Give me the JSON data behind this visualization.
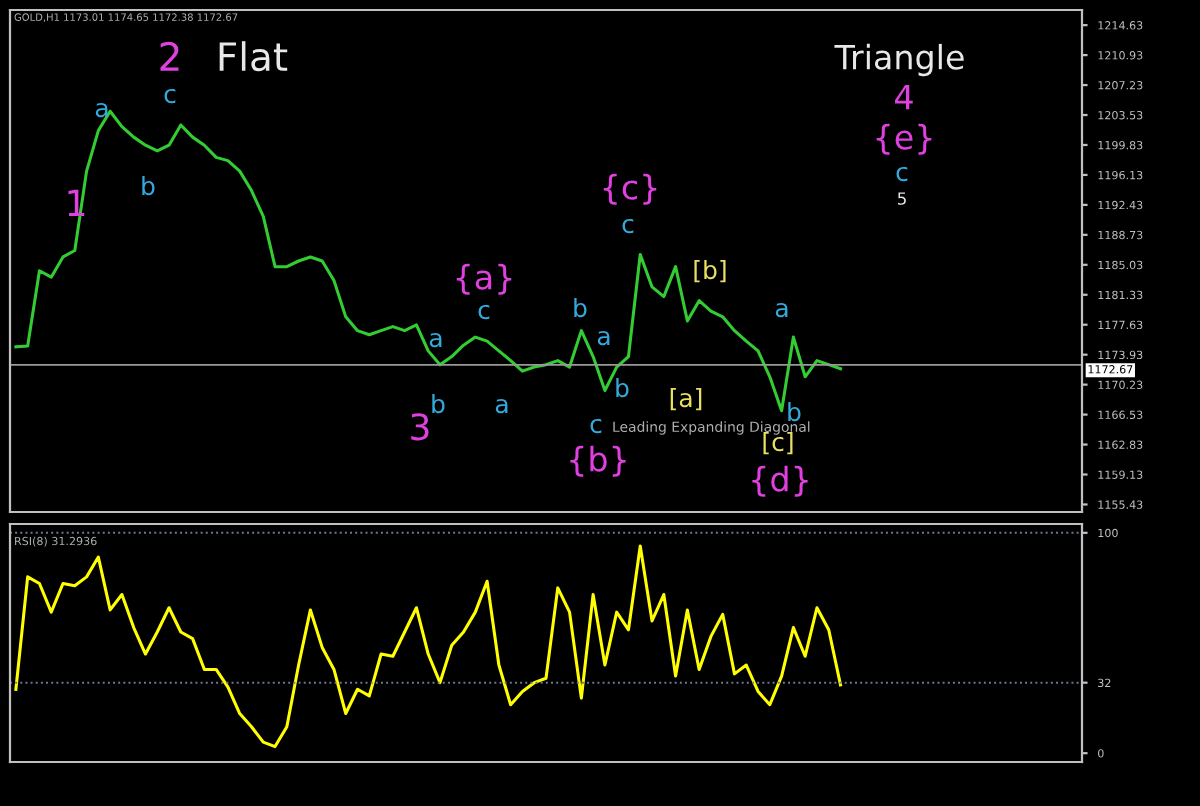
{
  "chart_data": [
    {
      "type": "line",
      "categories": [
        null,
        null,
        null,
        null,
        null,
        null,
        null,
        null,
        null,
        null,
        null,
        null,
        null,
        null,
        null,
        null,
        null,
        null,
        null,
        null,
        null,
        null,
        null,
        null,
        null,
        null,
        null,
        null,
        null,
        null,
        null,
        null,
        null,
        null,
        null,
        null,
        null,
        null,
        null,
        null,
        null,
        null,
        null,
        null,
        null,
        null,
        null,
        null,
        null,
        null,
        null,
        null,
        null,
        null,
        null,
        null,
        null,
        null,
        null,
        null,
        null,
        null,
        null,
        null,
        null,
        null,
        null,
        null,
        null,
        null,
        null,
        null,
        null,
        null,
        null,
        null,
        null,
        null,
        null,
        null,
        null,
        null,
        null,
        null,
        null,
        null,
        null,
        null,
        null,
        null,
        null
      ],
      "series": [
        {
          "color": "#33cc33",
          "values": [
            1174.9,
            1175.0,
            1184.3,
            1183.5,
            1186.0,
            1186.8,
            1196.6,
            1201.6,
            1204.0,
            1202.1,
            1200.8,
            1199.8,
            1199.1,
            1199.8,
            1202.3,
            1200.8,
            1199.8,
            1198.3,
            1197.9,
            1196.6,
            1194.2,
            1191.0,
            1184.8,
            1184.8,
            1185.5,
            1186.0,
            1185.5,
            1183.1,
            1178.6,
            1176.9,
            1176.4,
            1176.9,
            1177.4,
            1176.9,
            1177.6,
            1174.4,
            1172.7,
            1173.7,
            1175.1,
            1176.1,
            1175.6,
            1174.4,
            1173.2,
            1171.9,
            1172.4,
            1172.7,
            1173.2,
            1172.4,
            1176.9,
            1173.7,
            1169.5,
            1172.4,
            1173.7,
            1186.3,
            1182.3,
            1181.1,
            1184.8,
            1178.1,
            1180.6,
            1179.3,
            1178.6,
            1176.9,
            1175.6,
            1174.4,
            1171.2,
            1167.0,
            1176.1,
            1171.2,
            1173.2,
            1172.7,
            1172.2,
            null,
            null,
            null,
            null,
            null,
            null,
            null,
            null,
            null,
            null,
            null,
            null,
            null,
            null,
            null,
            null,
            null,
            null,
            null,
            null
          ]
        }
      ],
      "ylim": [
        1154.5,
        1216.5
      ],
      "yticks": [
        1155.43,
        1159.13,
        1162.83,
        1166.53,
        1170.23,
        1173.93,
        1177.63,
        1181.33,
        1185.03,
        1188.73,
        1192.43,
        1196.13,
        1199.83,
        1203.53,
        1207.23,
        1210.93,
        1214.63
      ],
      "tick_labels": "y",
      "grid": false,
      "legend": false,
      "ref_lines": [
        {
          "axis": "y",
          "value": 1172.67,
          "label": "1172.67",
          "color": "#9a9a9a"
        }
      ],
      "annotations": [
        "2",
        "Flat",
        "a",
        "c",
        "1",
        "b",
        "{a}",
        "c",
        "a",
        "3",
        "b",
        "a",
        "b",
        "c",
        "{b}",
        "a",
        "b",
        "c",
        "{c}",
        "[b]",
        "[a]",
        "Leading Expanding Diagonal",
        "a",
        "b",
        "[c]",
        "{d}",
        "Triangle",
        "4",
        "{e}",
        "c",
        "5",
        "GOLD,H1 1173.01 1174.65 1172.38 1172.67"
      ]
    },
    {
      "type": "line",
      "categories": [
        null,
        null,
        null,
        null,
        null,
        null,
        null,
        null,
        null,
        null,
        null,
        null,
        null,
        null,
        null,
        null,
        null,
        null,
        null,
        null,
        null,
        null,
        null,
        null,
        null,
        null,
        null,
        null,
        null,
        null,
        null,
        null,
        null,
        null,
        null,
        null,
        null,
        null,
        null,
        null,
        null,
        null,
        null,
        null,
        null,
        null,
        null,
        null,
        null,
        null,
        null,
        null,
        null,
        null,
        null,
        null,
        null,
        null,
        null,
        null,
        null,
        null,
        null,
        null,
        null,
        null,
        null,
        null,
        null,
        null,
        null,
        null,
        null,
        null,
        null,
        null,
        null,
        null,
        null,
        null,
        null,
        null,
        null,
        null,
        null,
        null,
        null,
        null,
        null,
        null,
        null
      ],
      "series": [
        {
          "color": "#ffff00",
          "values": [
            29,
            80,
            77,
            64,
            77,
            76,
            80,
            89,
            65,
            72,
            57,
            45,
            55,
            66,
            55,
            52,
            38,
            38,
            30,
            18,
            12,
            5,
            3,
            12,
            40,
            65,
            48,
            38,
            18,
            29,
            26,
            45,
            44,
            55,
            66,
            45,
            32,
            49,
            55,
            64,
            78,
            40,
            22,
            28,
            32,
            34,
            75,
            64,
            25,
            72,
            40,
            64,
            56,
            94,
            60,
            72,
            35,
            65,
            38,
            53,
            63,
            36,
            40,
            28,
            22,
            35,
            57,
            44,
            66,
            56,
            31,
            null,
            null,
            null,
            null,
            null,
            null,
            null,
            null,
            null,
            null,
            null,
            null,
            null,
            null,
            null,
            null,
            null,
            null,
            null,
            null
          ]
        }
      ],
      "ylim": [
        -4,
        104
      ],
      "yticks": [
        0,
        32,
        100
      ],
      "tick_labels": "y",
      "grid": false,
      "legend": false,
      "ref_lines": [
        {
          "axis": "y",
          "value": 100,
          "color": "#6a7a9a",
          "line_style": "dotted"
        },
        {
          "axis": "y",
          "value": 32,
          "color": "#6a7a9a",
          "line_style": "dotted"
        }
      ],
      "annotations": [
        "RSI(8) 31.2936"
      ]
    }
  ]
}
